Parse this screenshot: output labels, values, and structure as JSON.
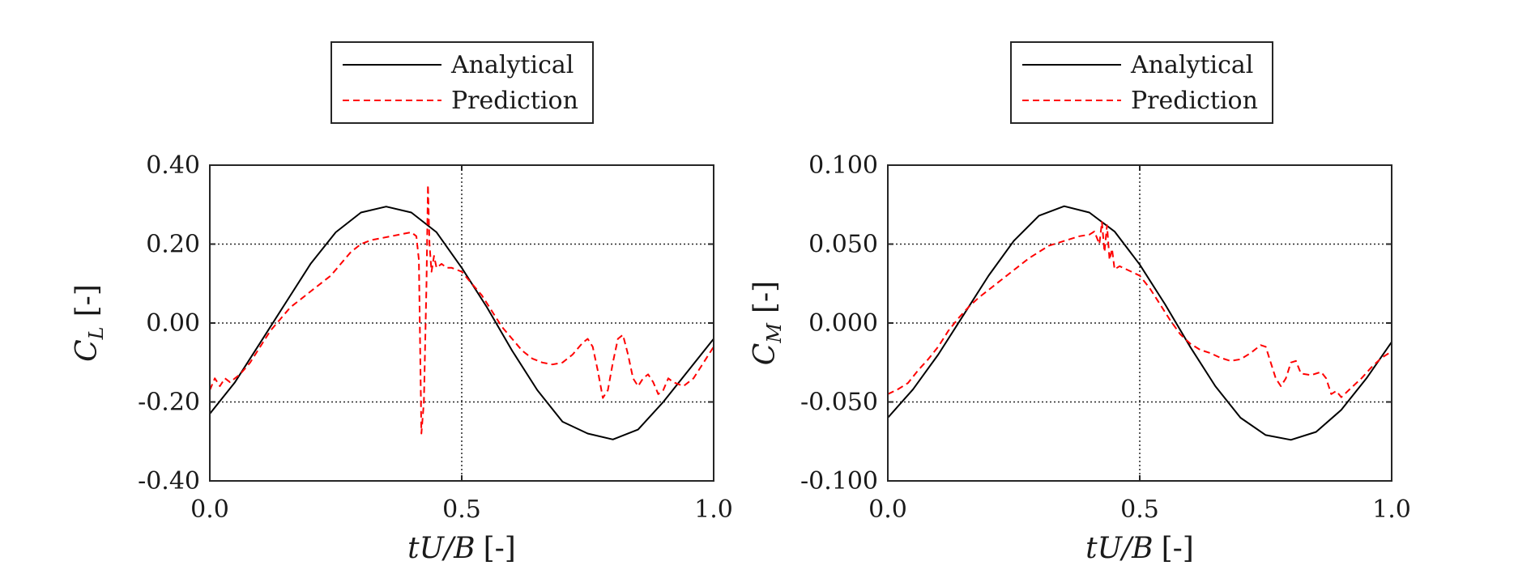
{
  "chart_data": [
    {
      "type": "line",
      "xlabel": "tU/B [-]",
      "ylabel": "C_L [-]",
      "ylabel_main": "C",
      "ylabel_sub": "L",
      "ylabel_unit": "[-]",
      "xlabel_italic": "tU/B",
      "xlabel_unit": "[-]",
      "xlim": [
        0.0,
        1.0
      ],
      "ylim": [
        -0.4,
        0.4
      ],
      "xticks": [
        "0.0",
        "0.5",
        "1.0"
      ],
      "yticks": [
        "-0.40",
        "-0.20",
        "0.00",
        "0.20",
        "0.40"
      ],
      "grid": true,
      "legend_position": "top",
      "series": [
        {
          "name": "Analytical",
          "color": "#000000",
          "style": "solid",
          "x": [
            0.0,
            0.05,
            0.1,
            0.15,
            0.2,
            0.25,
            0.3,
            0.35,
            0.4,
            0.45,
            0.5,
            0.55,
            0.6,
            0.65,
            0.7,
            0.75,
            0.8,
            0.85,
            0.9,
            0.95,
            1.0
          ],
          "y": [
            -0.23,
            -0.15,
            -0.05,
            0.05,
            0.15,
            0.23,
            0.28,
            0.295,
            0.28,
            0.23,
            0.14,
            0.04,
            -0.07,
            -0.17,
            -0.25,
            -0.28,
            -0.295,
            -0.27,
            -0.2,
            -0.12,
            -0.04
          ]
        },
        {
          "name": "Prediction",
          "color": "#ff0000",
          "style": "dashed",
          "x": [
            0.0,
            0.01,
            0.02,
            0.03,
            0.04,
            0.06,
            0.08,
            0.1,
            0.12,
            0.14,
            0.16,
            0.18,
            0.2,
            0.22,
            0.24,
            0.26,
            0.28,
            0.3,
            0.32,
            0.34,
            0.36,
            0.38,
            0.4,
            0.41,
            0.415,
            0.42,
            0.425,
            0.43,
            0.433,
            0.436,
            0.44,
            0.445,
            0.45,
            0.46,
            0.47,
            0.48,
            0.5,
            0.52,
            0.54,
            0.56,
            0.58,
            0.6,
            0.62,
            0.64,
            0.66,
            0.68,
            0.7,
            0.72,
            0.74,
            0.75,
            0.76,
            0.77,
            0.78,
            0.79,
            0.8,
            0.81,
            0.82,
            0.83,
            0.84,
            0.85,
            0.86,
            0.87,
            0.88,
            0.89,
            0.9,
            0.91,
            0.92,
            0.94,
            0.96,
            0.98,
            1.0
          ],
          "y": [
            -0.17,
            -0.14,
            -0.16,
            -0.14,
            -0.15,
            -0.13,
            -0.1,
            -0.06,
            -0.02,
            0.01,
            0.04,
            0.06,
            0.08,
            0.1,
            0.12,
            0.15,
            0.18,
            0.2,
            0.21,
            0.215,
            0.22,
            0.225,
            0.23,
            0.22,
            0.16,
            -0.28,
            -0.2,
            0.1,
            0.35,
            0.2,
            0.13,
            0.17,
            0.14,
            0.15,
            0.14,
            0.14,
            0.13,
            0.1,
            0.07,
            0.03,
            -0.01,
            -0.04,
            -0.07,
            -0.09,
            -0.1,
            -0.105,
            -0.1,
            -0.08,
            -0.05,
            -0.04,
            -0.06,
            -0.12,
            -0.19,
            -0.17,
            -0.1,
            -0.04,
            -0.03,
            -0.08,
            -0.14,
            -0.16,
            -0.14,
            -0.13,
            -0.15,
            -0.18,
            -0.17,
            -0.14,
            -0.15,
            -0.16,
            -0.14,
            -0.1,
            -0.06
          ]
        }
      ]
    },
    {
      "type": "line",
      "xlabel": "tU/B [-]",
      "ylabel": "C_M [-]",
      "ylabel_main": "C",
      "ylabel_sub": "M",
      "ylabel_unit": "[-]",
      "xlabel_italic": "tU/B",
      "xlabel_unit": "[-]",
      "xlim": [
        0.0,
        1.0
      ],
      "ylim": [
        -0.1,
        0.1
      ],
      "xticks": [
        "0.0",
        "0.5",
        "1.0"
      ],
      "yticks": [
        "-0.100",
        "-0.050",
        "0.000",
        "0.050",
        "0.100"
      ],
      "grid": true,
      "legend_position": "top",
      "series": [
        {
          "name": "Analytical",
          "color": "#000000",
          "style": "solid",
          "x": [
            0.0,
            0.05,
            0.1,
            0.15,
            0.2,
            0.25,
            0.3,
            0.35,
            0.4,
            0.45,
            0.5,
            0.55,
            0.6,
            0.65,
            0.7,
            0.75,
            0.8,
            0.85,
            0.9,
            0.95,
            1.0
          ],
          "y": [
            -0.06,
            -0.042,
            -0.02,
            0.005,
            0.03,
            0.052,
            0.068,
            0.074,
            0.07,
            0.058,
            0.037,
            0.012,
            -0.015,
            -0.04,
            -0.06,
            -0.071,
            -0.074,
            -0.069,
            -0.055,
            -0.035,
            -0.012
          ]
        },
        {
          "name": "Prediction",
          "color": "#ff0000",
          "style": "dashed",
          "x": [
            0.0,
            0.02,
            0.04,
            0.06,
            0.08,
            0.1,
            0.12,
            0.14,
            0.16,
            0.18,
            0.2,
            0.22,
            0.24,
            0.26,
            0.28,
            0.3,
            0.32,
            0.34,
            0.36,
            0.38,
            0.4,
            0.41,
            0.42,
            0.425,
            0.43,
            0.435,
            0.44,
            0.445,
            0.45,
            0.46,
            0.48,
            0.5,
            0.52,
            0.54,
            0.56,
            0.58,
            0.6,
            0.62,
            0.64,
            0.66,
            0.68,
            0.7,
            0.72,
            0.74,
            0.75,
            0.76,
            0.77,
            0.78,
            0.79,
            0.8,
            0.81,
            0.82,
            0.84,
            0.86,
            0.87,
            0.88,
            0.89,
            0.9,
            0.91,
            0.92,
            0.94,
            0.96,
            0.98,
            1.0
          ],
          "y": [
            -0.045,
            -0.042,
            -0.038,
            -0.03,
            -0.023,
            -0.015,
            -0.005,
            0.003,
            0.01,
            0.016,
            0.021,
            0.026,
            0.031,
            0.036,
            0.041,
            0.045,
            0.049,
            0.051,
            0.053,
            0.055,
            0.056,
            0.058,
            0.05,
            0.064,
            0.045,
            0.062,
            0.04,
            0.047,
            0.034,
            0.036,
            0.033,
            0.03,
            0.022,
            0.012,
            0.002,
            -0.007,
            -0.013,
            -0.017,
            -0.019,
            -0.022,
            -0.024,
            -0.023,
            -0.019,
            -0.014,
            -0.015,
            -0.025,
            -0.035,
            -0.04,
            -0.035,
            -0.025,
            -0.024,
            -0.032,
            -0.033,
            -0.031,
            -0.035,
            -0.045,
            -0.043,
            -0.047,
            -0.044,
            -0.041,
            -0.035,
            -0.028,
            -0.022,
            -0.018
          ]
        }
      ]
    }
  ]
}
